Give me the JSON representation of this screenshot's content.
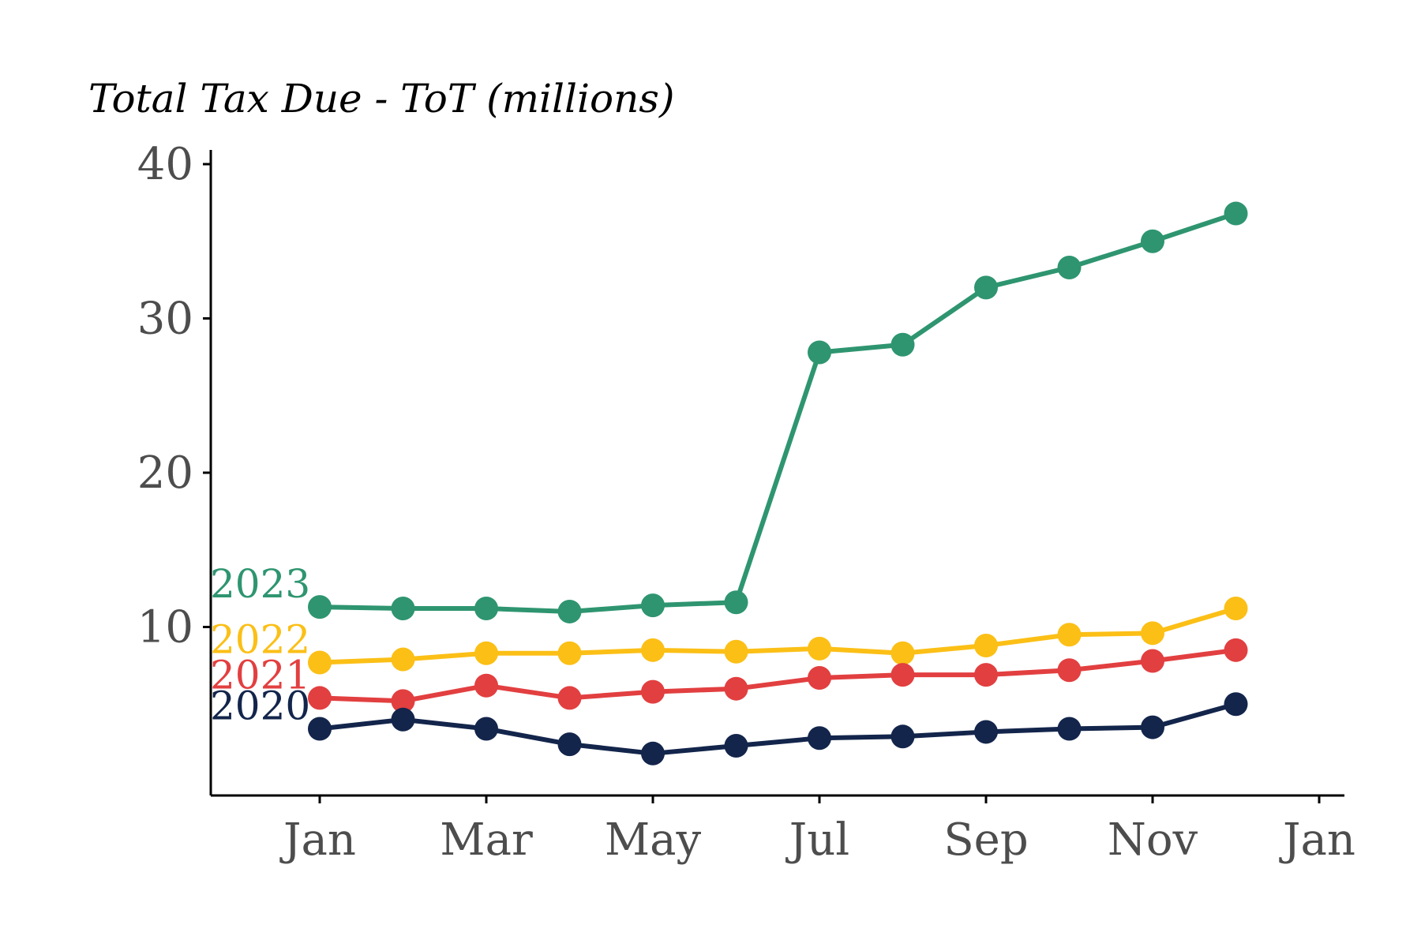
{
  "chart_data": {
    "type": "line",
    "title": "Total Tax Due - ToT (millions)",
    "xlabel": "",
    "ylabel": "",
    "x": [
      "Jan",
      "Feb",
      "Mar",
      "Apr",
      "May",
      "Jun",
      "Jul",
      "Aug",
      "Sep",
      "Oct",
      "Nov",
      "Dec"
    ],
    "x_ticks": [
      "Jan",
      "Mar",
      "May",
      "Jul",
      "Sep",
      "Nov",
      "Jan"
    ],
    "y_ticks": [
      10,
      20,
      30,
      40
    ],
    "ylim": [
      -1,
      41
    ],
    "grid": false,
    "legend": "inline-left",
    "series": [
      {
        "name": "2023",
        "color": "#2e9570",
        "values": [
          11.3,
          11.2,
          11.2,
          11.0,
          11.4,
          11.6,
          27.8,
          28.3,
          32.0,
          33.3,
          35.0,
          36.8
        ]
      },
      {
        "name": "2022",
        "color": "#fbbf16",
        "values": [
          7.7,
          7.9,
          8.3,
          8.3,
          8.5,
          8.4,
          8.6,
          8.3,
          8.8,
          9.5,
          9.6,
          11.2
        ]
      },
      {
        "name": "2021",
        "color": "#e23f40",
        "values": [
          5.4,
          5.2,
          6.2,
          5.4,
          5.8,
          6.0,
          6.7,
          6.9,
          6.9,
          7.2,
          7.8,
          8.5
        ]
      },
      {
        "name": "2020",
        "color": "#13254b",
        "values": [
          3.4,
          4.0,
          3.4,
          2.4,
          1.8,
          2.3,
          2.8,
          2.9,
          3.2,
          3.4,
          3.5,
          5.0
        ]
      }
    ]
  }
}
